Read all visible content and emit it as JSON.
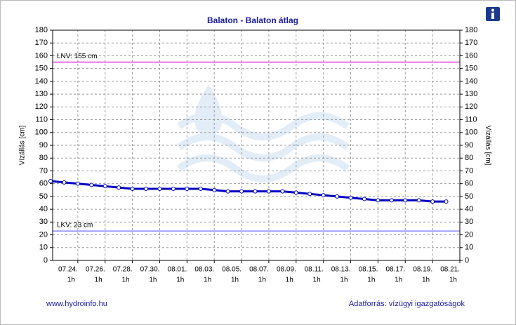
{
  "chart_data": {
    "type": "line",
    "title": "Balaton - Balaton átlag",
    "y_label": "Vízállás [cm]",
    "categories": [
      null,
      null,
      "07.24.",
      null,
      "07.26.",
      null,
      "07.28.",
      null,
      "07.30.",
      null,
      "08.01.",
      null,
      "08.03.",
      null,
      "08.05.",
      null,
      "08.07.",
      null,
      "08.09.",
      null,
      "08.11.",
      null,
      "08.13.",
      null,
      "08.15.",
      null,
      "08.17.",
      null,
      "08.19.",
      null,
      "08.21."
    ],
    "x_sublabel": "1h",
    "series": [
      {
        "name": "Balaton átlag",
        "color": "#0000c0",
        "values": [
          62,
          61,
          60,
          59,
          58,
          57,
          56,
          56,
          56,
          56,
          56,
          56,
          55,
          54,
          54,
          54,
          54,
          54,
          53,
          52,
          51,
          50,
          49,
          48,
          47,
          47,
          47,
          47,
          46,
          46,
          null
        ]
      }
    ],
    "reference_lines": [
      {
        "label": "LNV: 155 cm",
        "value": 155,
        "color": "#e040e0"
      },
      {
        "label": "LKV: 23 cm",
        "value": 23,
        "color": "#8a8aff"
      }
    ],
    "ylim": [
      0,
      180
    ],
    "yticks": [
      0,
      10,
      20,
      30,
      40,
      50,
      60,
      70,
      80,
      90,
      100,
      110,
      120,
      130,
      140,
      150,
      160,
      170,
      180
    ],
    "grid": true,
    "footer_left": "www.hydroinfo.hu",
    "footer_right": "Adatforrás: vízügyi igazgatóságok"
  }
}
